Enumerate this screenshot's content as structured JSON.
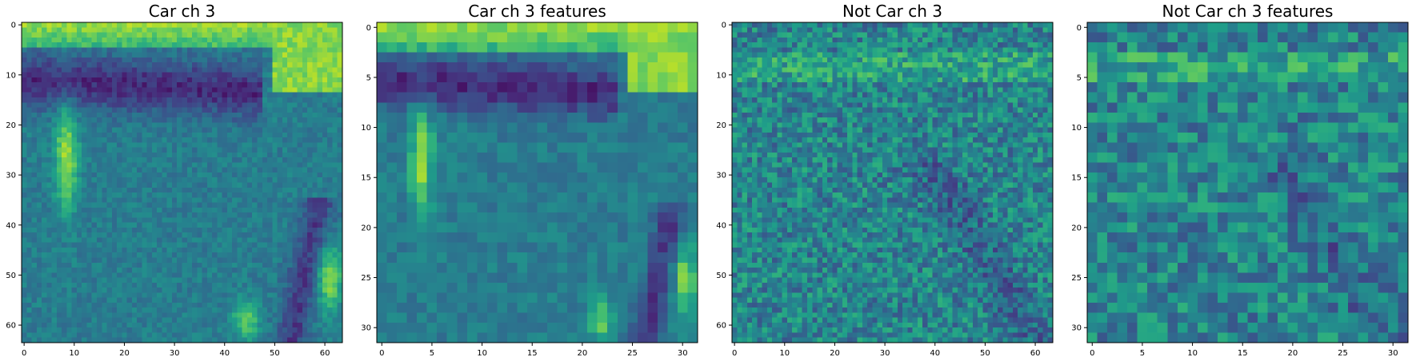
{
  "figure": {
    "colormap": "viridis",
    "colors": {
      "background": "#ffffff",
      "axis": "#000000"
    }
  },
  "chart_data": [
    {
      "type": "heatmap",
      "title": "Car ch 3",
      "grid": false,
      "size": 64,
      "xlim": [
        -0.5,
        63.5
      ],
      "ylim": [
        63.5,
        -0.5
      ],
      "xticks": [
        0,
        10,
        20,
        30,
        40,
        50,
        60
      ],
      "yticks": [
        0,
        10,
        20,
        30,
        40,
        50,
        60
      ],
      "seed": 11
    },
    {
      "type": "heatmap",
      "title": "Car ch 3 features",
      "grid": false,
      "size": 32,
      "xlim": [
        -0.5,
        31.5
      ],
      "ylim": [
        31.5,
        -0.5
      ],
      "xticks": [
        0,
        5,
        10,
        15,
        20,
        25,
        30
      ],
      "yticks": [
        0,
        5,
        10,
        15,
        20,
        25,
        30
      ],
      "seed": 11
    },
    {
      "type": "heatmap",
      "title": "Not Car ch 3",
      "grid": false,
      "size": 64,
      "xlim": [
        -0.5,
        63.5
      ],
      "ylim": [
        63.5,
        -0.5
      ],
      "xticks": [
        0,
        10,
        20,
        30,
        40,
        50,
        60
      ],
      "yticks": [
        0,
        10,
        20,
        30,
        40,
        50,
        60
      ],
      "seed": 29
    },
    {
      "type": "heatmap",
      "title": "Not Car ch 3 features",
      "grid": false,
      "size": 32,
      "xlim": [
        -0.5,
        31.5
      ],
      "ylim": [
        31.5,
        -0.5
      ],
      "xticks": [
        0,
        5,
        10,
        15,
        20,
        25,
        30
      ],
      "yticks": [
        0,
        5,
        10,
        15,
        20,
        25,
        30
      ],
      "seed": 29
    }
  ]
}
